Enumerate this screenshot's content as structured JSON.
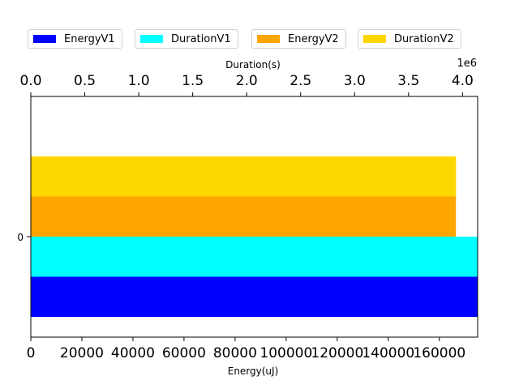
{
  "chart_data": {
    "type": "bar",
    "orientation": "horizontal",
    "categories": [
      "0"
    ],
    "xlabel_bottom": "Energy(uJ)",
    "xlabel_top": "Duration(s)",
    "top_axis_offset_text": "1e6",
    "xlim_bottom": [
      0,
      175000
    ],
    "xlim_top": [
      0,
      4140000
    ],
    "bottom_ticks": [
      0,
      20000,
      40000,
      60000,
      80000,
      100000,
      120000,
      140000,
      160000
    ],
    "top_ticks": [
      "0.0",
      "0.5",
      "1.0",
      "1.5",
      "2.0",
      "2.5",
      "3.0",
      "3.5",
      "4.0"
    ],
    "series": [
      {
        "name": "EnergyV1",
        "axis": "bottom",
        "values": [
          175000
        ],
        "color": "#0000ff"
      },
      {
        "name": "DurationV1",
        "axis": "top",
        "values": [
          4140000
        ],
        "color": "#00ffff"
      },
      {
        "name": "EnergyV2",
        "axis": "bottom",
        "values": [
          166500
        ],
        "color": "#ffa500"
      },
      {
        "name": "DurationV2",
        "axis": "top",
        "values": [
          3940000
        ],
        "color": "#ffd700"
      }
    ],
    "grid": false,
    "legend_placement": "top"
  }
}
